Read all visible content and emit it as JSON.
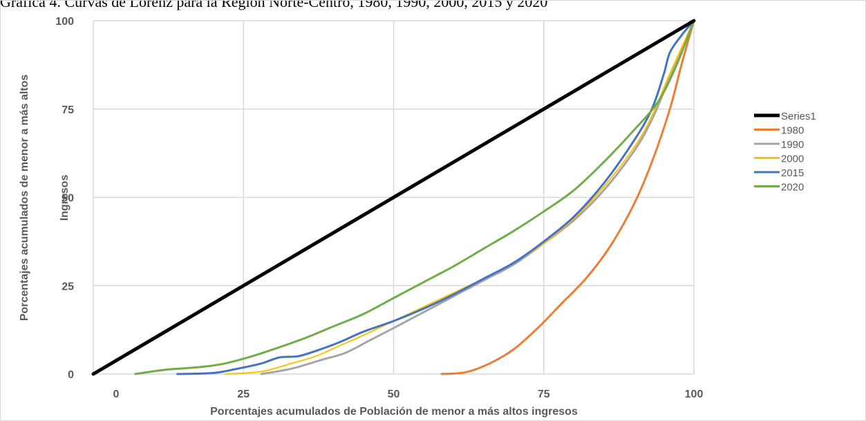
{
  "header": {
    "text": "Gráfica 4. Curvas de Lorenz para la Región Norte-Centro, 1980, 1990, 2000, 2015 y 2020"
  },
  "chart_data": {
    "type": "line",
    "xlabel": "Porcentajes acumulados de Población de menor a más altos ingresos",
    "ylabel_lines": [
      "Porcentajes acumulados de menor a más altos",
      "Ingresos"
    ],
    "xlim": [
      0,
      100
    ],
    "ylim": [
      0,
      100
    ],
    "xticks": [
      "0",
      "25",
      "50",
      "75",
      "100"
    ],
    "yticks": [
      "0",
      "25",
      "50",
      "75",
      "100"
    ],
    "grid": true,
    "legend_position": "right",
    "series": [
      {
        "name": "Series1",
        "color": "#000000",
        "width": 5,
        "points": [
          [
            0,
            0
          ],
          [
            100,
            100
          ]
        ]
      },
      {
        "name": "1980",
        "color": "#ED7D31",
        "width": 3,
        "points": [
          [
            58,
            0
          ],
          [
            62,
            0.5
          ],
          [
            66,
            3
          ],
          [
            70,
            7
          ],
          [
            74,
            13
          ],
          [
            78,
            20
          ],
          [
            82,
            27
          ],
          [
            86,
            36
          ],
          [
            90,
            48
          ],
          [
            93,
            60
          ],
          [
            96,
            75
          ],
          [
            98,
            88
          ],
          [
            100,
            100
          ]
        ]
      },
      {
        "name": "1990",
        "color": "#A5A5A5",
        "width": 3,
        "points": [
          [
            28,
            0
          ],
          [
            33,
            1.5
          ],
          [
            38,
            4
          ],
          [
            42,
            6
          ],
          [
            46,
            9.5
          ],
          [
            50,
            13
          ],
          [
            55,
            17.5
          ],
          [
            60,
            22
          ],
          [
            65,
            26.5
          ],
          [
            70,
            31
          ],
          [
            75,
            37
          ],
          [
            80,
            43.5
          ],
          [
            85,
            52
          ],
          [
            90,
            63
          ],
          [
            93,
            72
          ],
          [
            96,
            84
          ],
          [
            100,
            100
          ]
        ]
      },
      {
        "name": "2000",
        "color": "#FFC000",
        "width": 2,
        "points": [
          [
            22,
            0
          ],
          [
            28,
            0.7
          ],
          [
            33,
            3
          ],
          [
            37,
            5
          ],
          [
            41,
            8
          ],
          [
            45,
            11
          ],
          [
            50,
            15
          ],
          [
            55,
            19
          ],
          [
            60,
            23
          ],
          [
            65,
            27
          ],
          [
            70,
            31.5
          ],
          [
            75,
            37
          ],
          [
            80,
            44
          ],
          [
            85,
            53
          ],
          [
            90,
            64
          ],
          [
            93,
            73
          ],
          [
            96,
            85
          ],
          [
            100,
            100
          ]
        ]
      },
      {
        "name": "2015",
        "color": "#4472C4",
        "width": 3,
        "points": [
          [
            14,
            0
          ],
          [
            20,
            0.3
          ],
          [
            24,
            1.5
          ],
          [
            28,
            3
          ],
          [
            31,
            4.7
          ],
          [
            34,
            5
          ],
          [
            37,
            6.5
          ],
          [
            41,
            9
          ],
          [
            45,
            12
          ],
          [
            50,
            15
          ],
          [
            55,
            18.5
          ],
          [
            60,
            22.5
          ],
          [
            65,
            27
          ],
          [
            70,
            31.5
          ],
          [
            75,
            37.5
          ],
          [
            80,
            44.5
          ],
          [
            85,
            54
          ],
          [
            90,
            66
          ],
          [
            93,
            75
          ],
          [
            95,
            85
          ],
          [
            96,
            91
          ],
          [
            98,
            96
          ],
          [
            100,
            100
          ]
        ]
      },
      {
        "name": "2020",
        "color": "#70AD47",
        "width": 3,
        "points": [
          [
            7,
            0
          ],
          [
            12,
            1.2
          ],
          [
            18,
            2
          ],
          [
            22,
            3
          ],
          [
            26,
            4.8
          ],
          [
            30,
            7
          ],
          [
            35,
            10
          ],
          [
            40,
            13.5
          ],
          [
            45,
            17
          ],
          [
            50,
            21.5
          ],
          [
            55,
            26
          ],
          [
            60,
            30.5
          ],
          [
            65,
            35.5
          ],
          [
            70,
            40.5
          ],
          [
            75,
            46
          ],
          [
            80,
            52
          ],
          [
            85,
            60
          ],
          [
            90,
            69
          ],
          [
            94,
            77
          ],
          [
            97,
            87
          ],
          [
            100,
            100
          ]
        ]
      }
    ]
  }
}
